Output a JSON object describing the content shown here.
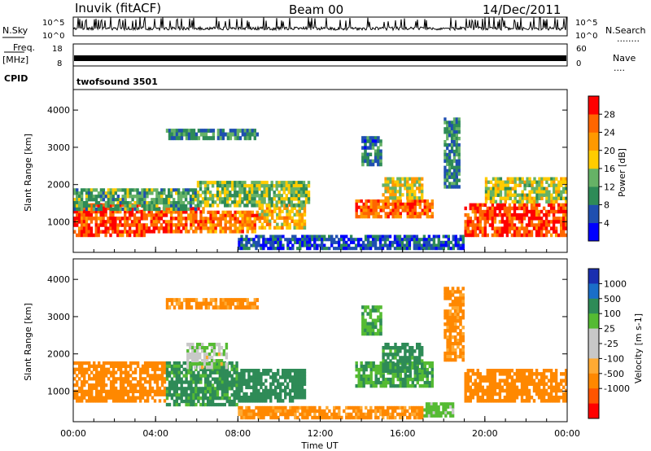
{
  "header": {
    "station": "Inuvik (fitACF)",
    "beam": "Beam 00",
    "date": "14/Dec/2011"
  },
  "panels_top": {
    "nsky_label": "N.Sky",
    "nsky_hi": "10^5",
    "nsky_lo": "10^0",
    "nsearch_label": "N.Search",
    "nsearch_legend": "........",
    "freq_label": "Freq.",
    "freq_unit": "[MHz]",
    "freq_hi": "18",
    "freq_lo": "8",
    "nave_label": "Nave",
    "nave_legend": "....",
    "nave_hi": "60",
    "nave_lo": "0",
    "cpid_label": "CPID",
    "cpid_value": "twofsound 3501"
  },
  "colors": {
    "power": [
      "#0000ff",
      "#1f4fb0",
      "#2e8b57",
      "#66b266",
      "#ffcc00",
      "#ff9900",
      "#ff6600",
      "#ff0000"
    ],
    "velocity": [
      "#1a2fb0",
      "#1a6ec8",
      "#2e8b57",
      "#55bb33",
      "#c8c8c8",
      "#c8c8c8",
      "#ffaa33",
      "#ff8800",
      "#ff5500",
      "#ff0000"
    ]
  },
  "chart_data": [
    {
      "type": "heatmap",
      "name": "power",
      "ylabel": "Slant Range [km]",
      "yticks": [
        "1000",
        "2000",
        "3000",
        "4000"
      ],
      "ytick_values": [
        1000,
        2000,
        3000,
        4000
      ],
      "ylim": [
        180,
        4550
      ],
      "xlim": [
        0,
        24
      ],
      "colorbar_label": "Power [dB]",
      "colorbar_ticks": [
        "4",
        "8",
        "12",
        "16",
        "20",
        "24",
        "28"
      ],
      "colorbar_range": [
        0,
        32
      ],
      "bands": [
        {
          "t0": 0.0,
          "t1": 3.5,
          "r0": 600,
          "r1": 1500,
          "value": 28
        },
        {
          "t0": 3.5,
          "t1": 6.5,
          "r0": 700,
          "r1": 1400,
          "value": 26
        },
        {
          "t0": 6.5,
          "t1": 9.0,
          "r0": 700,
          "r1": 1300,
          "value": 24
        },
        {
          "t0": 9.0,
          "t1": 11.3,
          "r0": 800,
          "r1": 1500,
          "value": 20
        },
        {
          "t0": 0.0,
          "t1": 6.0,
          "r0": 1300,
          "r1": 1900,
          "value": 12
        },
        {
          "t0": 6.0,
          "t1": 11.5,
          "r0": 1400,
          "r1": 2100,
          "value": 14
        },
        {
          "t0": 13.7,
          "t1": 17.5,
          "r0": 1100,
          "r1": 1600,
          "value": 26
        },
        {
          "t0": 15.0,
          "t1": 17.0,
          "r0": 1600,
          "r1": 2200,
          "value": 18
        },
        {
          "t0": 14.0,
          "t1": 15.0,
          "r0": 2500,
          "r1": 3300,
          "value": 8
        },
        {
          "t0": 18.0,
          "t1": 18.8,
          "r0": 1900,
          "r1": 3800,
          "value": 10
        },
        {
          "t0": 19.0,
          "t1": 24.0,
          "r0": 600,
          "r1": 1500,
          "value": 28
        },
        {
          "t0": 20.0,
          "t1": 24.0,
          "r0": 1500,
          "r1": 2200,
          "value": 16
        },
        {
          "t0": 4.5,
          "t1": 9.0,
          "r0": 3200,
          "r1": 3500,
          "value": 10
        },
        {
          "t0": 8.0,
          "t1": 19.0,
          "r0": 250,
          "r1": 650,
          "value": 6
        }
      ]
    },
    {
      "type": "heatmap",
      "name": "velocity",
      "ylabel": "Slant Range [km]",
      "yticks": [
        "1000",
        "2000",
        "3000",
        "4000"
      ],
      "ytick_values": [
        1000,
        2000,
        3000,
        4000
      ],
      "ylim": [
        180,
        4550
      ],
      "xlabel": "Time UT",
      "xticks": [
        "00:00",
        "04:00",
        "08:00",
        "12:00",
        "16:00",
        "20:00",
        "00:00"
      ],
      "xtick_values": [
        0,
        4,
        8,
        12,
        16,
        20,
        24
      ],
      "xlim": [
        0,
        24
      ],
      "colorbar_label": "Velocity [m s-1]",
      "colorbar_ticks": [
        "1000",
        "500",
        "100",
        "25",
        "-25",
        "-100",
        "-500",
        "-1000"
      ],
      "bands": [
        {
          "t0": 0.0,
          "t1": 4.5,
          "r0": 700,
          "r1": 1800,
          "value": -300
        },
        {
          "t0": 4.5,
          "t1": 8.0,
          "r0": 600,
          "r1": 1800,
          "value": 150
        },
        {
          "t0": 8.0,
          "t1": 11.3,
          "r0": 700,
          "r1": 1600,
          "value": 300
        },
        {
          "t0": 5.5,
          "t1": 7.5,
          "r0": 1600,
          "r1": 2300,
          "value": 10
        },
        {
          "t0": 13.7,
          "t1": 17.5,
          "r0": 1100,
          "r1": 1800,
          "value": 100
        },
        {
          "t0": 14.0,
          "t1": 15.0,
          "r0": 2500,
          "r1": 3300,
          "value": 80
        },
        {
          "t0": 15.0,
          "t1": 17.0,
          "r0": 1500,
          "r1": 2300,
          "value": 200
        },
        {
          "t0": 18.0,
          "t1": 19.0,
          "r0": 1800,
          "r1": 3800,
          "value": -150
        },
        {
          "t0": 19.0,
          "t1": 24.0,
          "r0": 700,
          "r1": 1600,
          "value": -250
        },
        {
          "t0": 17.0,
          "t1": 18.5,
          "r0": 300,
          "r1": 700,
          "value": 60
        },
        {
          "t0": 8.0,
          "t1": 17.0,
          "r0": 250,
          "r1": 600,
          "value": -150
        },
        {
          "t0": 4.5,
          "t1": 9.0,
          "r0": 3200,
          "r1": 3500,
          "value": -150
        }
      ]
    }
  ]
}
